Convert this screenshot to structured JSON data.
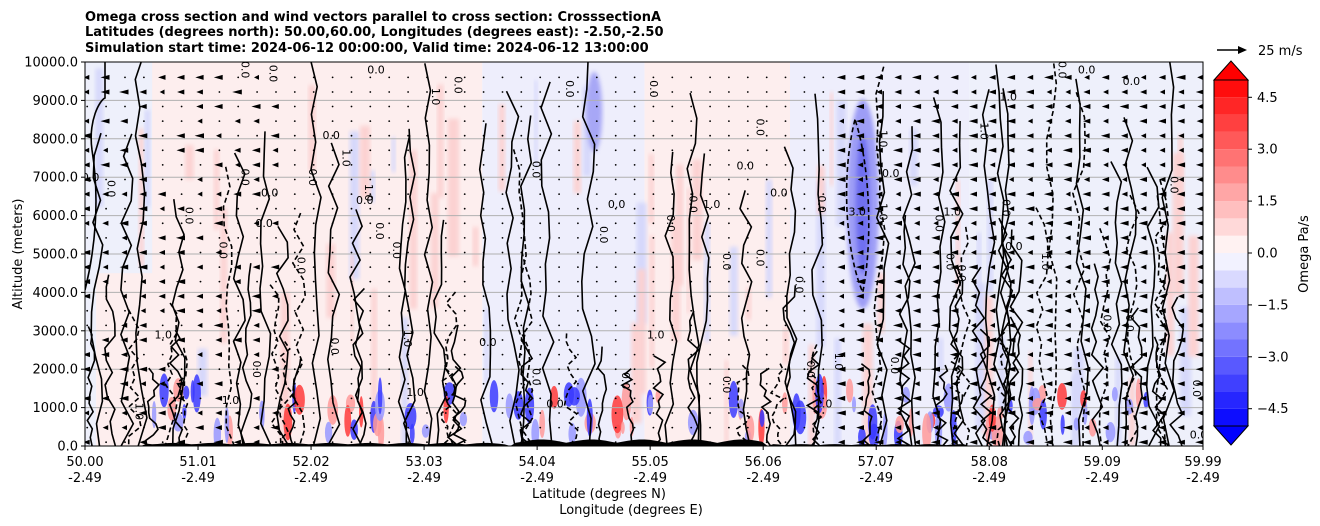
{
  "chart_data": {
    "type": "heatmap",
    "title": [
      "Omega cross section and wind vectors parallel to cross section: CrosssectionA",
      "Latitudes (degrees north): 50.00,60.00, Longitudes (degrees east): -2.50,-2.50",
      "Simulation start time: 2024-06-12 00:00:00, Valid time: 2024-06-12 13:00:00"
    ],
    "xlabel": "Latitude (degrees N)",
    "xlabel2": "Longitude (degrees E)",
    "ylabel": "Altitude (meters)",
    "xlim": [
      50.0,
      59.99
    ],
    "ylim": [
      0,
      10000
    ],
    "grid": "horizontal",
    "x_ticks": [
      {
        "lat": "50.00",
        "lon": "-2.49",
        "value": 50.0
      },
      {
        "lat": "51.01",
        "lon": "-2.49",
        "value": 51.01
      },
      {
        "lat": "52.02",
        "lon": "-2.49",
        "value": 52.02
      },
      {
        "lat": "53.03",
        "lon": "-2.49",
        "value": 53.03
      },
      {
        "lat": "54.04",
        "lon": "-2.49",
        "value": 54.04
      },
      {
        "lat": "55.05",
        "lon": "-2.49",
        "value": 55.05
      },
      {
        "lat": "56.06",
        "lon": "-2.49",
        "value": 56.06
      },
      {
        "lat": "57.07",
        "lon": "-2.49",
        "value": 57.07
      },
      {
        "lat": "58.08",
        "lon": "-2.49",
        "value": 58.08
      },
      {
        "lat": "59.09",
        "lon": "-2.49",
        "value": 59.09
      },
      {
        "lat": "59.99",
        "lon": "-2.49",
        "value": 59.99
      }
    ],
    "y_ticks": [
      {
        "label": "0.0",
        "value": 0
      },
      {
        "label": "1000.0",
        "value": 1000
      },
      {
        "label": "2000.0",
        "value": 2000
      },
      {
        "label": "3000.0",
        "value": 3000
      },
      {
        "label": "4000.0",
        "value": 4000
      },
      {
        "label": "5000.0",
        "value": 5000
      },
      {
        "label": "6000.0",
        "value": 6000
      },
      {
        "label": "7000.0",
        "value": 7000
      },
      {
        "label": "8000.0",
        "value": 8000
      },
      {
        "label": "9000.0",
        "value": 9000
      },
      {
        "label": "10000.0",
        "value": 10000
      }
    ],
    "colorbar": {
      "label": "Omega Pa/s",
      "range": [
        -5,
        5
      ],
      "extend": "both",
      "colormap": "bwr",
      "ticks": [
        {
          "label": "4.5",
          "value": 4.5
        },
        {
          "label": "3.0",
          "value": 3.0
        },
        {
          "label": "1.5",
          "value": 1.5
        },
        {
          "label": "0.0",
          "value": 0.0
        },
        {
          "label": "−1.5",
          "value": -1.5
        },
        {
          "label": "−3.0",
          "value": -3.0
        },
        {
          "label": "−4.5",
          "value": -4.5
        }
      ]
    },
    "quiver_key": {
      "label": "25 m/s",
      "value": 25
    },
    "contour_labels": [
      {
        "text": "0.0",
        "x": 50.05,
        "y": 6900
      },
      {
        "text": "0.0",
        "x": 50.2,
        "y": 6700
      },
      {
        "text": "1.0",
        "x": 50.45,
        "y": 900
      },
      {
        "text": "1.0",
        "x": 50.7,
        "y": 2800
      },
      {
        "text": "0.0",
        "x": 50.9,
        "y": 6000
      },
      {
        "text": "0.0",
        "x": 51.2,
        "y": 5100
      },
      {
        "text": "1.0",
        "x": 51.3,
        "y": 1100
      },
      {
        "text": "0.0",
        "x": 51.5,
        "y": 2000
      },
      {
        "text": "0.0",
        "x": 51.4,
        "y": 7000
      },
      {
        "text": "0.0",
        "x": 51.65,
        "y": 6500
      },
      {
        "text": "0.0",
        "x": 51.4,
        "y": 9800
      },
      {
        "text": "0.0",
        "x": 51.65,
        "y": 9700
      },
      {
        "text": "0.0",
        "x": 51.6,
        "y": 5700
      },
      {
        "text": "0.0",
        "x": 51.9,
        "y": 4700
      },
      {
        "text": "0.0",
        "x": 52.0,
        "y": 7000
      },
      {
        "text": "0.0",
        "x": 52.2,
        "y": 8000
      },
      {
        "text": "1.0",
        "x": 52.3,
        "y": 7500
      },
      {
        "text": "0.0",
        "x": 52.2,
        "y": 2600
      },
      {
        "text": "0.0",
        "x": 52.5,
        "y": 6300
      },
      {
        "text": "1.0",
        "x": 52.5,
        "y": 6600
      },
      {
        "text": "0.0",
        "x": 52.6,
        "y": 5600
      },
      {
        "text": "0.0",
        "x": 52.6,
        "y": 9700
      },
      {
        "text": "0.0",
        "x": 52.75,
        "y": 5100
      },
      {
        "text": "1.0",
        "x": 52.85,
        "y": 2800
      },
      {
        "text": "1.0",
        "x": 52.95,
        "y": 1300
      },
      {
        "text": "1.0",
        "x": 53.1,
        "y": 9100
      },
      {
        "text": "0.0",
        "x": 53.3,
        "y": 9400
      },
      {
        "text": "0.0",
        "x": 53.6,
        "y": 2600
      },
      {
        "text": "0.0",
        "x": 54.0,
        "y": 7200
      },
      {
        "text": "0.0",
        "x": 54.0,
        "y": 1800
      },
      {
        "text": "0.0",
        "x": 54.2,
        "y": 1000
      },
      {
        "text": "0.0",
        "x": 54.3,
        "y": 9300
      },
      {
        "text": "0.0",
        "x": 54.6,
        "y": 5500
      },
      {
        "text": "0.0",
        "x": 54.75,
        "y": 6200
      },
      {
        "text": "0.0",
        "x": 54.8,
        "y": 1700
      },
      {
        "text": "0.0",
        "x": 55.05,
        "y": 9300
      },
      {
        "text": "1.0",
        "x": 55.1,
        "y": 2800
      },
      {
        "text": "0.0",
        "x": 55.2,
        "y": 5800
      },
      {
        "text": "0.0",
        "x": 55.4,
        "y": 6300
      },
      {
        "text": "1.0",
        "x": 55.6,
        "y": 6200
      },
      {
        "text": "0.0",
        "x": 55.7,
        "y": 4800
      },
      {
        "text": "0.0",
        "x": 55.7,
        "y": 1600
      },
      {
        "text": "0.0",
        "x": 55.9,
        "y": 7200
      },
      {
        "text": "0.0",
        "x": 56.0,
        "y": 8300
      },
      {
        "text": "0.0",
        "x": 56.0,
        "y": 4900
      },
      {
        "text": "0.0",
        "x": 56.2,
        "y": 6500
      },
      {
        "text": "0.0",
        "x": 56.35,
        "y": 4200
      },
      {
        "text": "0.0",
        "x": 56.45,
        "y": 2000
      },
      {
        "text": "1.0",
        "x": 56.6,
        "y": 1000
      },
      {
        "text": "1.0",
        "x": 56.7,
        "y": 2200
      },
      {
        "text": "0.0",
        "x": 56.55,
        "y": 6300
      },
      {
        "text": "3.0",
        "x": 56.9,
        "y": 6000
      },
      {
        "text": "1.0",
        "x": 57.1,
        "y": 6100
      },
      {
        "text": "1.0",
        "x": 57.1,
        "y": 8000
      },
      {
        "text": "0.0",
        "x": 57.2,
        "y": 7000
      },
      {
        "text": "0.0",
        "x": 57.2,
        "y": 2100
      },
      {
        "text": "0.0",
        "x": 57.6,
        "y": 5800
      },
      {
        "text": "1.0",
        "x": 57.75,
        "y": 6000
      },
      {
        "text": "0.0",
        "x": 57.7,
        "y": 4800
      },
      {
        "text": "0.0",
        "x": 57.8,
        "y": 4500
      },
      {
        "text": "1.0",
        "x": 58.25,
        "y": 9000
      },
      {
        "text": "1.0",
        "x": 58.0,
        "y": 8200
      },
      {
        "text": "0.0",
        "x": 58.2,
        "y": 6200
      },
      {
        "text": "0.0",
        "x": 58.3,
        "y": 5100
      },
      {
        "text": "1.0",
        "x": 58.55,
        "y": 4800
      },
      {
        "text": "0.0",
        "x": 58.7,
        "y": 9800
      },
      {
        "text": "0.0",
        "x": 58.95,
        "y": 9700
      },
      {
        "text": "0.0",
        "x": 59.1,
        "y": 3200
      },
      {
        "text": "0.0",
        "x": 59.3,
        "y": 3200
      },
      {
        "text": "0.0",
        "x": 59.35,
        "y": 9400
      },
      {
        "text": "0.0",
        "x": 59.7,
        "y": 6800
      },
      {
        "text": "0.0",
        "x": 59.9,
        "y": 1500
      },
      {
        "text": "0.0",
        "x": 59.95,
        "y": 200
      }
    ],
    "colors": {
      "positive": "#ff0000",
      "negative": "#0000ff",
      "neutral": "#ffffff",
      "contour": "#000000",
      "terrain": "#000000",
      "grid": "#b0b0b0"
    }
  }
}
